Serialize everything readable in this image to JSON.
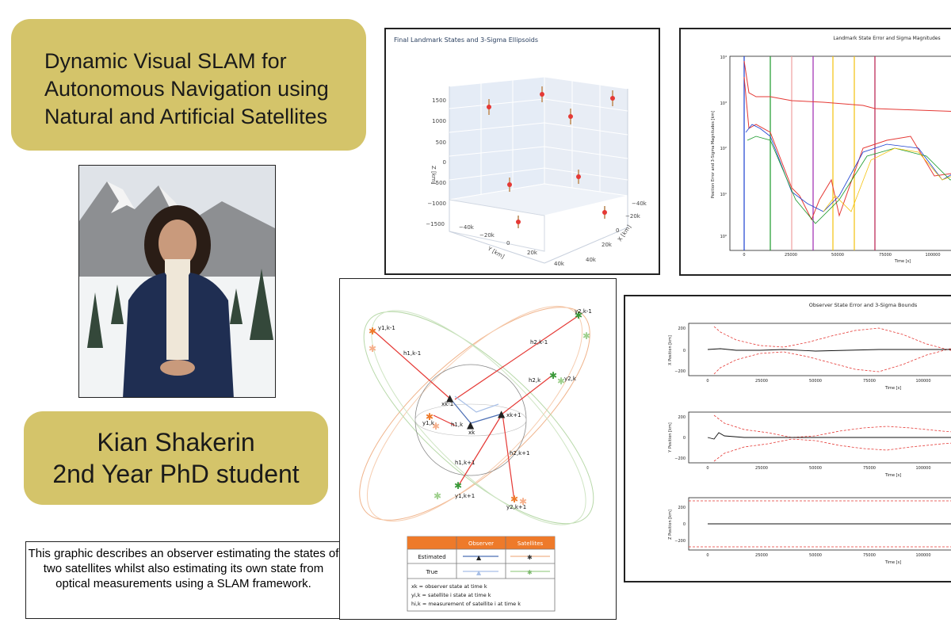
{
  "title_box": {
    "lines": [
      "Dynamic Visual SLAM for",
      "Autonomous Navigation using",
      "Natural and Artificial Satellites"
    ]
  },
  "name_box": {
    "name": "Kian Shakerin",
    "role": "2nd Year PhD student"
  },
  "caption": "This graphic describes an observer estimating the states of two satellites whilst also estimating its own state from optical measurements using a SLAM framework.",
  "landmark_plot": {
    "title": "Final Landmark States and 3-Sigma Ellipsoids",
    "z_label": "Z [km]",
    "y_label": "Y [km]",
    "x_label": "X [km]",
    "z_ticks": [
      "1500",
      "1000",
      "500",
      "0",
      "−500",
      "−1000",
      "−1500"
    ],
    "y_ticks": [
      "−40k",
      "−20k",
      "0",
      "20k",
      "40k"
    ],
    "x_ticks": [
      "−40k",
      "−20k",
      "0",
      "20k",
      "40k"
    ]
  },
  "landmark_error_plot": {
    "title": "Landmark State Error and Sigma Magnitudes",
    "y_label": "Position Error and 3-Sigma Magnitudes [km]",
    "x_label": "Time [s]",
    "y_ticks": [
      "10⁴",
      "10³",
      "10²",
      "10¹",
      "10⁰"
    ],
    "x_ticks": [
      "0",
      "25000",
      "50000",
      "75000",
      "100000"
    ]
  },
  "slam_diagram": {
    "labels": {
      "y1_km1": "y1,k-1",
      "h1_km1": "h1,k-1",
      "y2_km1": "y2,k-1",
      "h2_km1": "h2,k-1",
      "xk_m1": "xk-1",
      "xk": "xk",
      "xk_p1": "xk+1",
      "y1_k": "y1,k",
      "h1_k": "h1,k",
      "y2_k": "y2,k",
      "h2_k": "h2,k",
      "y1_kp1": "y1,k+1",
      "h1_kp1": "h1,k+1",
      "y2_kp1": "y2,k+1",
      "h2_kp1": "h2,k+1"
    },
    "legend": {
      "col_observer": "Observer",
      "col_satellites": "Satellites",
      "row_estimated": "Estimated",
      "row_true": "True"
    },
    "definitions": [
      "xk = observer state at time k",
      "yi,k = satellite i state at time k",
      "hi,k = measurement of satellite i at time k"
    ]
  },
  "observer_plot": {
    "title": "Observer State Error and 3-Sigma Bounds",
    "x_label": "Time [s]",
    "x_ticks": [
      "0",
      "25000",
      "50000",
      "75000",
      "100000"
    ],
    "panels": [
      {
        "y_label": "X Position [km]",
        "y_ticks": [
          "200",
          "0",
          "−200"
        ]
      },
      {
        "y_label": "Y Position [km]",
        "y_ticks": [
          "200",
          "0",
          "−200"
        ]
      },
      {
        "y_label": "Z Position [km]",
        "y_ticks": [
          "200",
          "0",
          "−200"
        ]
      }
    ]
  },
  "colors": {
    "pill": "#d4c46a",
    "error_red": "#e53935",
    "orbit_orange": "#f0b48c",
    "orbit_green": "#b7d8a8",
    "legend_header": "#ee7a2a"
  }
}
